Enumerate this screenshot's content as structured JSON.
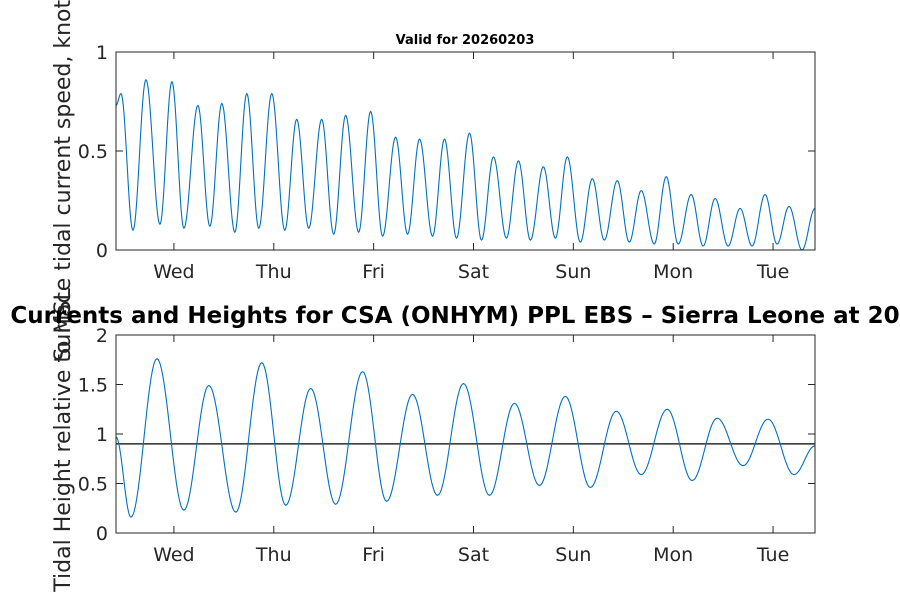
{
  "chart_data": [
    {
      "type": "line",
      "title": "Valid for 20260203",
      "ylabel": "Surface tidal current speed, knots",
      "xlabel": "",
      "ylim": [
        0,
        1
      ],
      "yticks": [
        0,
        0.5,
        1
      ],
      "ytick_labels": [
        "0",
        "0.5",
        "1"
      ],
      "xlim": [
        0,
        7
      ],
      "xtick_positions": [
        0.58,
        1.58,
        2.58,
        3.58,
        4.58,
        5.58,
        6.58
      ],
      "xtick_labels": [
        "Wed",
        "Thu",
        "Fri",
        "Sat",
        "Sun",
        "Mon",
        "Tue"
      ],
      "x_units": "days from start of plot",
      "series": [
        {
          "name": "current speed",
          "color": "#0072bd",
          "x": [
            0.0,
            0.05,
            0.17,
            0.3,
            0.44,
            0.56,
            0.68,
            0.82,
            0.94,
            1.06,
            1.19,
            1.31,
            1.43,
            1.56,
            1.69,
            1.81,
            1.93,
            2.06,
            2.18,
            2.3,
            2.43,
            2.55,
            2.67,
            2.8,
            2.92,
            3.04,
            3.17,
            3.29,
            3.41,
            3.54,
            3.66,
            3.78,
            3.91,
            4.03,
            4.15,
            4.28,
            4.4,
            4.52,
            4.65,
            4.77,
            4.89,
            5.02,
            5.14,
            5.26,
            5.39,
            5.51,
            5.63,
            5.76,
            5.88,
            6.0,
            6.13,
            6.25,
            6.37,
            6.5,
            6.62,
            6.74,
            6.87,
            7.0
          ],
          "y": [
            0.73,
            0.79,
            0.1,
            0.86,
            0.13,
            0.85,
            0.11,
            0.73,
            0.12,
            0.74,
            0.09,
            0.79,
            0.11,
            0.79,
            0.1,
            0.66,
            0.11,
            0.66,
            0.08,
            0.68,
            0.09,
            0.7,
            0.07,
            0.57,
            0.08,
            0.56,
            0.07,
            0.56,
            0.06,
            0.59,
            0.05,
            0.47,
            0.06,
            0.45,
            0.05,
            0.42,
            0.06,
            0.47,
            0.04,
            0.36,
            0.05,
            0.35,
            0.04,
            0.3,
            0.03,
            0.37,
            0.03,
            0.28,
            0.02,
            0.26,
            0.02,
            0.21,
            0.02,
            0.28,
            0.03,
            0.22,
            0.0,
            0.21
          ]
        }
      ]
    },
    {
      "type": "line",
      "title": "Currents and Heights for CSA (ONHYM) PPL EBS  – Sierra Leone at 20",
      "ylabel": "Tidal Height relative to MSL",
      "xlabel": "",
      "ylim": [
        0,
        2
      ],
      "yticks": [
        0,
        0.5,
        1,
        1.5,
        2
      ],
      "ytick_labels": [
        "0",
        "0.5",
        "1",
        "1.5",
        "2"
      ],
      "xlim": [
        0,
        7
      ],
      "xtick_positions": [
        0.58,
        1.58,
        2.58,
        3.58,
        4.58,
        5.58,
        6.58
      ],
      "xtick_labels": [
        "Wed",
        "Thu",
        "Fri",
        "Sat",
        "Sun",
        "Mon",
        "Tue"
      ],
      "x_units": "days from start of plot",
      "reference_line": {
        "y": 0.9,
        "color": "#000000"
      },
      "series": [
        {
          "name": "tidal height",
          "color": "#0072bd",
          "x": [
            0.0,
            0.15,
            0.41,
            0.68,
            0.93,
            1.2,
            1.46,
            1.7,
            1.95,
            2.2,
            2.47,
            2.71,
            2.97,
            3.22,
            3.48,
            3.74,
            3.99,
            4.24,
            4.5,
            4.75,
            5.01,
            5.26,
            5.52,
            5.77,
            6.02,
            6.28,
            6.53,
            6.79,
            7.0
          ],
          "y": [
            0.97,
            0.16,
            1.76,
            0.23,
            1.49,
            0.21,
            1.72,
            0.28,
            1.46,
            0.29,
            1.63,
            0.32,
            1.4,
            0.38,
            1.51,
            0.38,
            1.31,
            0.48,
            1.38,
            0.46,
            1.23,
            0.59,
            1.25,
            0.53,
            1.16,
            0.68,
            1.15,
            0.59,
            0.88
          ]
        }
      ]
    }
  ]
}
